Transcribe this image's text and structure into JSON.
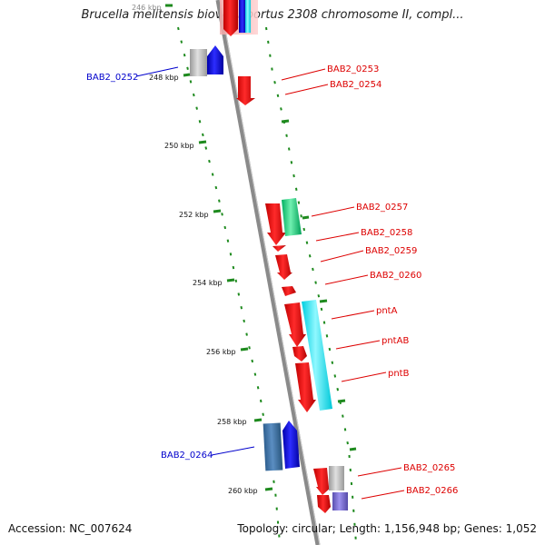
{
  "title": "Brucella melitensis biovar Abortus 2308 chromosome II, compl...",
  "footer": {
    "accession": "Accession: NC_007624",
    "topology": "Topology: circular; Length: 1,156,948 bp; Genes: 1,052"
  },
  "ticks": [
    {
      "label": "246 kbp"
    },
    {
      "label": "248 kbp"
    },
    {
      "label": "250 kbp"
    },
    {
      "label": "252 kbp"
    },
    {
      "label": "254 kbp"
    },
    {
      "label": "256 kbp"
    },
    {
      "label": "258 kbp"
    },
    {
      "label": "260 kbp"
    }
  ],
  "genes": [
    {
      "label": "BAB2_0252",
      "color": "#0000cc"
    },
    {
      "label": "BAB2_0253",
      "color": "#dd0000"
    },
    {
      "label": "BAB2_0254",
      "color": "#dd0000"
    },
    {
      "label": "BAB2_0257",
      "color": "#dd0000"
    },
    {
      "label": "BAB2_0258",
      "color": "#dd0000"
    },
    {
      "label": "BAB2_0259",
      "color": "#dd0000"
    },
    {
      "label": "BAB2_0260",
      "color": "#dd0000"
    },
    {
      "label": "pntA",
      "color": "#dd0000"
    },
    {
      "label": "pntAB",
      "color": "#dd0000"
    },
    {
      "label": "pntB",
      "color": "#dd0000"
    },
    {
      "label": "BAB2_0264",
      "color": "#0000cc"
    },
    {
      "label": "BAB2_0265",
      "color": "#dd0000"
    },
    {
      "label": "BAB2_0266",
      "color": "#dd0000"
    }
  ],
  "colors": {
    "backbone": "#8a8a8a",
    "gc_skew": "#1e8a1e",
    "forward_cds": "#ee0000",
    "reverse_cds": "#0000ee"
  }
}
